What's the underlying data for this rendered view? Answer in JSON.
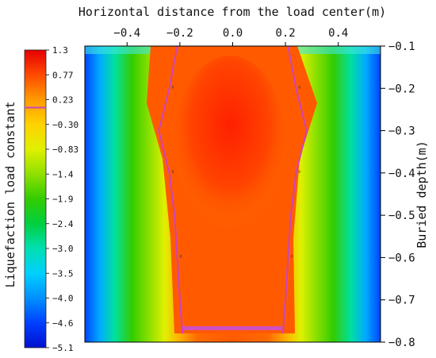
{
  "chart_data": {
    "type": "heatmap",
    "xlabel": "Horizontal distance from the load center(m)",
    "ylabel": "Buried depth(m)",
    "colorbar_label": "Liquefaction load constant",
    "xlim": [
      -0.56,
      0.56
    ],
    "ylim": [
      -0.1,
      -0.8
    ],
    "x_ticks": [
      -0.4,
      -0.2,
      0.0,
      0.2,
      0.4
    ],
    "x_tick_labels": [
      "−0.4",
      "−0.2",
      "0.0",
      "0.2",
      "0.4"
    ],
    "y_ticks": [
      -0.1,
      -0.2,
      -0.3,
      -0.4,
      -0.5,
      -0.6,
      -0.7,
      -0.8
    ],
    "y_tick_labels": [
      "−0.1",
      "−0.2",
      "−0.3",
      "−0.4",
      "−0.5",
      "−0.6",
      "−0.7",
      "−0.8"
    ],
    "x_axis_position": "top",
    "y_axis_position": "right",
    "colorbar": {
      "position": "left",
      "levels": [
        1.3,
        0.77,
        0.23,
        -0.3,
        -0.83,
        -1.4,
        -1.9,
        -2.4,
        -3.0,
        -3.5,
        -4.0,
        -4.6,
        -5.1
      ],
      "level_labels": [
        "1.3",
        "0.77",
        "0.23",
        "−0.30",
        "−0.83",
        "−1.4",
        "−1.9",
        "−2.4",
        "−3.0",
        "−3.5",
        "−4.0",
        "−4.6",
        "−5.1"
      ],
      "colors": [
        "#e60000",
        "#ff4a00",
        "#ff9a00",
        "#ffd200",
        "#e0f000",
        "#8fe000",
        "#33cc00",
        "#00d040",
        "#00e0b0",
        "#00d0ff",
        "#0090ff",
        "#0040ff",
        "#0010d0"
      ],
      "marked_level": 0.23
    },
    "zero_contour": {
      "label": "0",
      "color": "#cc44bb",
      "left_branch": [
        [
          -0.21,
          -0.1
        ],
        [
          -0.24,
          -0.2
        ],
        [
          -0.28,
          -0.3
        ],
        [
          -0.24,
          -0.4
        ],
        [
          -0.22,
          -0.5
        ],
        [
          -0.21,
          -0.6
        ],
        [
          -0.2,
          -0.7
        ],
        [
          -0.19,
          -0.78
        ]
      ],
      "right_branch": [
        [
          0.21,
          -0.1
        ],
        [
          0.24,
          -0.2
        ],
        [
          0.28,
          -0.3
        ],
        [
          0.24,
          -0.4
        ],
        [
          0.22,
          -0.5
        ],
        [
          0.21,
          -0.6
        ],
        [
          0.2,
          -0.7
        ],
        [
          0.19,
          -0.78
        ]
      ]
    },
    "grid": false
  }
}
